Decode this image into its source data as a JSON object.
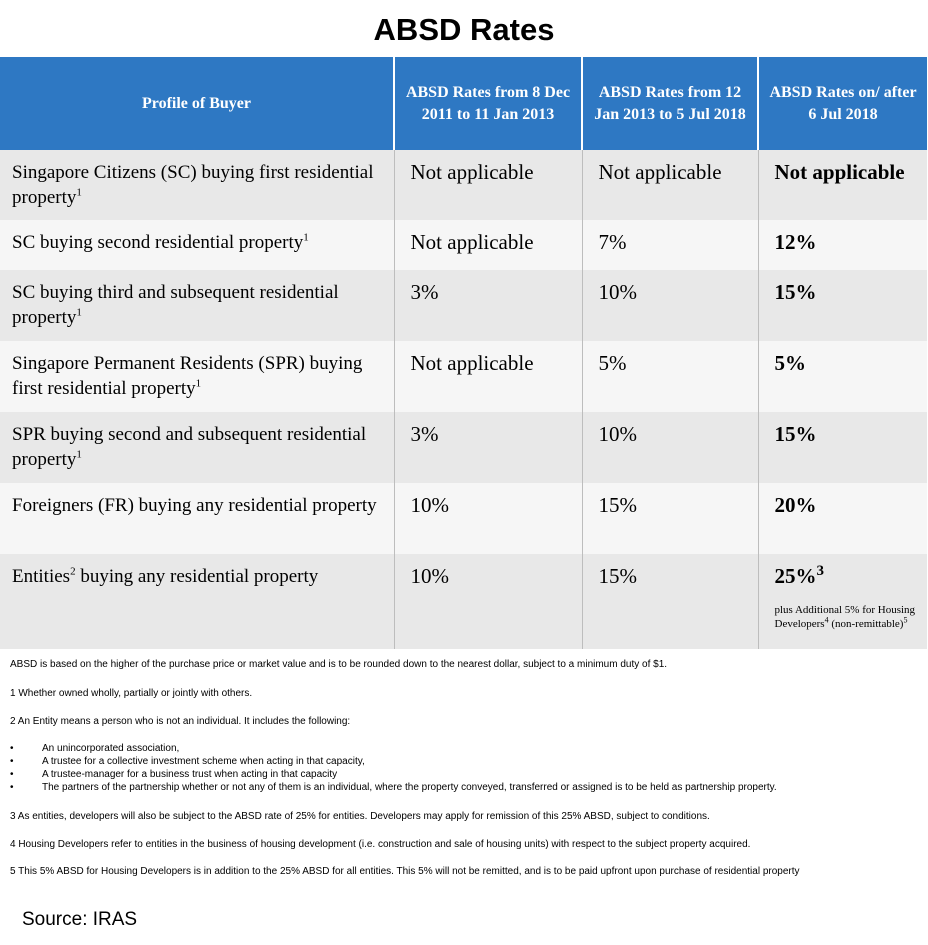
{
  "title": "ABSD Rates",
  "table": {
    "headers": [
      "Profile of Buyer",
      "ABSD Rates from 8 Dec 2011 to 11 Jan 2013",
      "ABSD Rates from 12 Jan 2013 to 5 Jul 2018",
      "ABSD Rates on/ after 6 Jul 2018"
    ],
    "rows": [
      {
        "profile": "Singapore Citizens (SC) buying first residential property",
        "profile_sup": "1",
        "r1": "Not applicable",
        "r2": "Not applicable",
        "r3": "Not applicable"
      },
      {
        "profile": "SC buying second residential property",
        "profile_sup": "1",
        "r1": "Not applicable",
        "r2": "7%",
        "r3": "12%"
      },
      {
        "profile": "SC buying third and subsequent residential property",
        "profile_sup": "1",
        "r1": "3%",
        "r2": "10%",
        "r3": "15%"
      },
      {
        "profile": "Singapore Permanent Residents (SPR) buying first residential property",
        "profile_sup": "1",
        "r1": "Not applicable",
        "r2": "5%",
        "r3": "5%"
      },
      {
        "profile": "SPR buying second and subsequent residential property",
        "profile_sup": "1",
        "r1": "3%",
        "r2": "10%",
        "r3": "15%"
      },
      {
        "profile": "Foreigners (FR) buying any residential property",
        "profile_sup": "",
        "r1": "10%",
        "r2": "15%",
        "r3": "20%"
      },
      {
        "profile_a": "Entities",
        "profile_sup": "2",
        "profile_b": " buying any residential property",
        "r1": "10%",
        "r2": "15%",
        "r3": "25%",
        "r3_sup": "3",
        "r3_note_a": "plus Additional 5% for Housing Developers",
        "r3_note_sup1": "4",
        "r3_note_b": " (non-remittable)",
        "r3_note_sup2": "5"
      }
    ]
  },
  "notes": {
    "absd": "ABSD is based on the higher of the purchase price or market value and is to be rounded down to the nearest dollar, subject to a minimum duty of $1.",
    "n1": "1  Whether owned wholly, partially or jointly with others.",
    "n2": "2 An Entity means a person who is not an individual. It includes the following:",
    "bullet_char": "•",
    "bullets": [
      "An unincorporated association,",
      "A trustee for a collective investment scheme when acting in that capacity,",
      "A trustee-manager for a business trust when acting in that capacity",
      "The partners of the partnership whether or not any of them is an individual, where the property conveyed, transferred or assigned is to be held as partnership property."
    ],
    "n3": "3 As entities, developers will also be subject to the ABSD rate of 25% for entities. Developers may apply for remission of this 25% ABSD, subject to conditions.",
    "n4": "4 Housing Developers refer to entities in the business of housing development (i.e. construction and sale of housing units) with respect to the subject property acquired.",
    "n5": "5 This 5% ABSD for Housing Developers is in addition to the 25% ABSD for all entities. This 5% will not be remitted, and is to be paid upfront upon purchase of residential property"
  },
  "source": "Source: IRAS",
  "colors": {
    "header_bg": "#2e78c3",
    "row_odd": "#e8e8e8",
    "row_even": "#f6f6f6"
  }
}
